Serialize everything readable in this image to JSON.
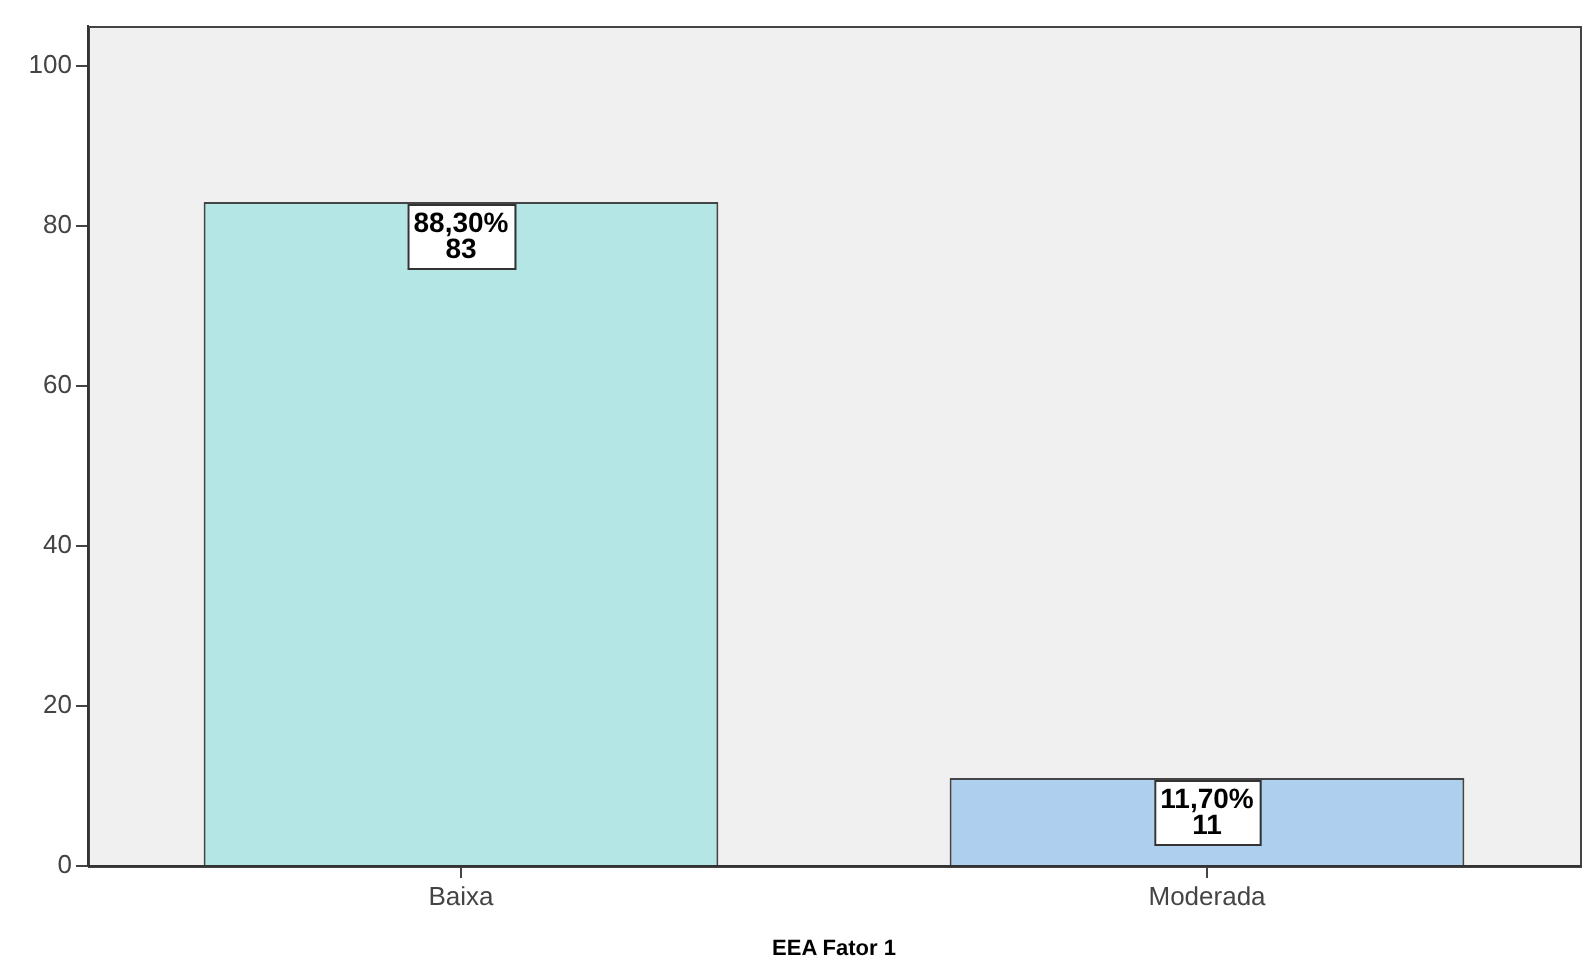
{
  "chart_data": {
    "type": "bar",
    "xlabel": "EEA Fator 1",
    "categories": [
      "Baixa",
      "Moderada"
    ],
    "values": [
      83,
      11
    ],
    "colors": [
      "#b4e6e6",
      "#aecfee"
    ],
    "value_labels": [
      "88,30%\n83",
      "11,70%\n11"
    ],
    "ylim": [
      0,
      105
    ],
    "yticks": [
      0,
      20,
      40,
      60,
      80,
      100
    ],
    "grid": false,
    "legend": false
  }
}
